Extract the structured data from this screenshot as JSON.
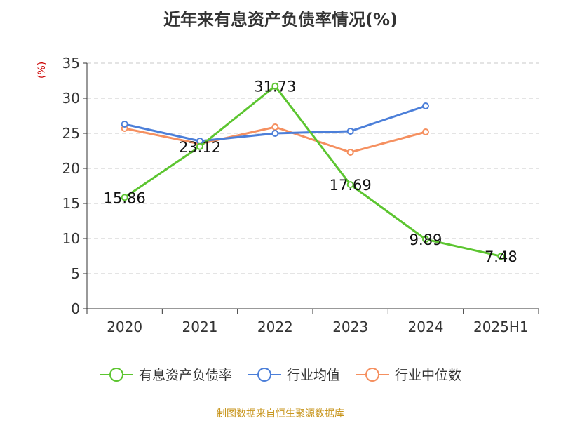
{
  "chart_data": {
    "type": "line",
    "title": "近年来有息资产负债率情况(%)",
    "ylabel": "(%)",
    "categories": [
      "2020",
      "2021",
      "2022",
      "2023",
      "2024",
      "2025H1"
    ],
    "ylim": [
      0,
      35
    ],
    "yticks": [
      0,
      5,
      10,
      15,
      20,
      25,
      30,
      35
    ],
    "grid": true,
    "legend_position": "bottom",
    "series": [
      {
        "name": "有息资产负债率",
        "color": "#5cc530",
        "values": [
          15.86,
          23.12,
          31.73,
          17.69,
          9.89,
          7.48
        ],
        "labels": [
          "15.86",
          "23.12",
          "31.73",
          "17.69",
          "9.89",
          "7.48"
        ]
      },
      {
        "name": "行业均值",
        "color": "#4c7fd9",
        "values": [
          26.3,
          23.9,
          25.0,
          25.3,
          28.9,
          null
        ]
      },
      {
        "name": "行业中位数",
        "color": "#f59060",
        "values": [
          25.7,
          23.5,
          25.9,
          22.3,
          25.2,
          null
        ]
      }
    ]
  },
  "footer": {
    "source": "制图数据来自恒生聚源数据库"
  }
}
